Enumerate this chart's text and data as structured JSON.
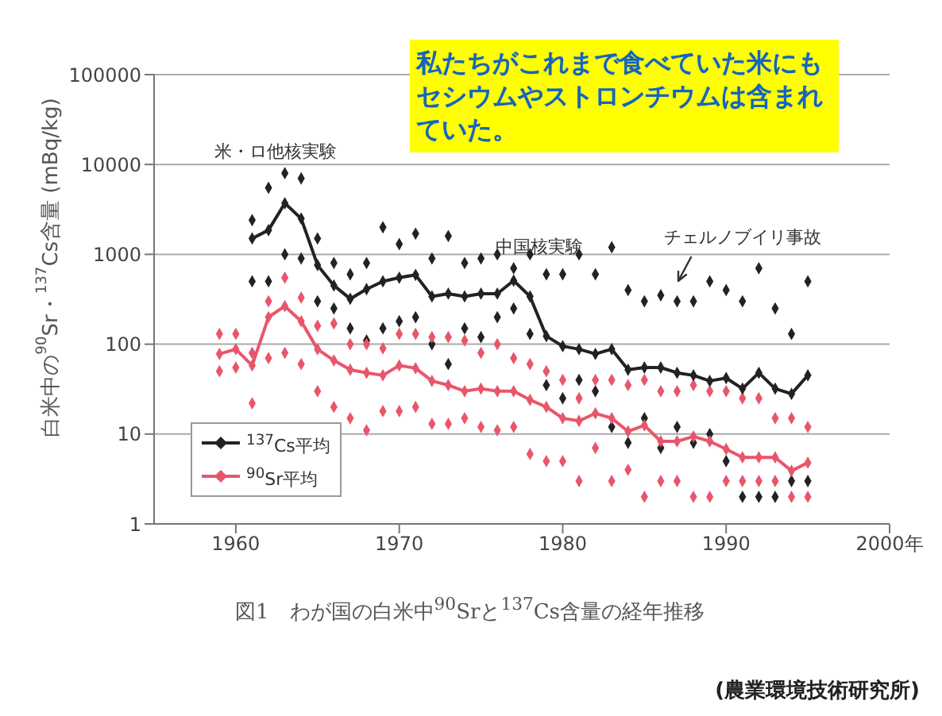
{
  "chart_data": {
    "type": "scatter",
    "ylabel": "白米中の$^{90}$Sr・$^{137}$Cs含量 (mBq/kg)",
    "log": "y",
    "grid": "y",
    "legend": "bottom left",
    "marker": "diamond",
    "line_style": "solid",
    "xlim": [
      1955,
      2000
    ],
    "xticks": [
      1960,
      1970,
      1980,
      1990,
      {
        "value": 2000,
        "label": "2000年"
      }
    ],
    "ylim": [
      1,
      100000
    ],
    "yticks": [
      1,
      10,
      100,
      1000,
      10000,
      100000
    ],
    "annotations": [
      "私たちがこれまで食べていた米にもセシウムやストロンチウムは含まれていた。",
      "図1　わが国の白米中$^{90}$Srと$^{137}$Cs含量の経年推移",
      "(農業環境技術研究所)",
      "米・ロ他核実験",
      "中国核実験",
      "チェルノブイリ事故"
    ],
    "series": [
      {
        "name": "$^{137}$Cs平均",
        "type": "line",
        "color": "#222222",
        "x": [
          1961,
          1962,
          1963,
          1964,
          1965,
          1966,
          1967,
          1968,
          1969,
          1970,
          1971,
          1972,
          1973,
          1974,
          1975,
          1976,
          1977,
          1978,
          1979,
          1980,
          1981,
          1982,
          1983,
          1984,
          1985,
          1986,
          1987,
          1988,
          1989,
          1990,
          1991,
          1992,
          1993,
          1994,
          1995
        ],
        "values": [
          1500,
          1860,
          3700,
          2500,
          760,
          450,
          320,
          410,
          500,
          550,
          590,
          340,
          365,
          340,
          365,
          365,
          510,
          340,
          123,
          95,
          88,
          78,
          88,
          52,
          55,
          55,
          48,
          45,
          39,
          42,
          32,
          48,
          32,
          28,
          45
        ]
      },
      {
        "name": "$^{90}$Sr平均",
        "type": "line",
        "color": "#e8566b",
        "x": [
          1959,
          1960,
          1961,
          1962,
          1963,
          1964,
          1965,
          1966,
          1967,
          1968,
          1969,
          1970,
          1971,
          1972,
          1973,
          1974,
          1975,
          1976,
          1977,
          1978,
          1979,
          1980,
          1981,
          1982,
          1983,
          1984,
          1985,
          1986,
          1987,
          1988,
          1989,
          1990,
          1991,
          1992,
          1993,
          1994,
          1995
        ],
        "values": [
          78,
          88,
          58,
          200,
          265,
          180,
          88,
          66,
          52,
          48,
          45,
          58,
          54,
          39,
          35,
          30,
          32,
          30,
          30,
          24,
          20,
          15,
          14,
          17,
          15,
          10.7,
          12.5,
          8.3,
          8.3,
          9.4,
          8.3,
          6.8,
          5.5,
          5.5,
          5.5,
          3.9,
          4.8
        ]
      },
      {
        "type": "scatter",
        "color": "#222222",
        "x": [
          1961,
          1961,
          1962,
          1962,
          1963,
          1963,
          1964,
          1964,
          1965,
          1965,
          1966,
          1966,
          1967,
          1967,
          1968,
          1968,
          1969,
          1969,
          1970,
          1970,
          1971,
          1971,
          1972,
          1972,
          1973,
          1973,
          1974,
          1974,
          1975,
          1975,
          1976,
          1976,
          1977,
          1977,
          1978,
          1978,
          1979,
          1979,
          1980,
          1980,
          1981,
          1981,
          1982,
          1982,
          1983,
          1983,
          1984,
          1984,
          1985,
          1985,
          1986,
          1986,
          1987,
          1987,
          1988,
          1988,
          1989,
          1989,
          1990,
          1990,
          1991,
          1991,
          1992,
          1992,
          1993,
          1993,
          1994,
          1994,
          1995,
          1995
        ],
        "values": [
          2400,
          500,
          5500,
          500,
          8000,
          1000,
          7000,
          900,
          1500,
          300,
          800,
          250,
          600,
          150,
          800,
          110,
          2000,
          150,
          1300,
          180,
          1700,
          200,
          900,
          100,
          1600,
          60,
          800,
          150,
          900,
          120,
          1000,
          200,
          700,
          250,
          1000,
          130,
          600,
          35,
          600,
          25,
          1000,
          40,
          600,
          30,
          1200,
          12,
          400,
          8,
          300,
          15,
          350,
          7,
          300,
          12,
          300,
          8,
          500,
          10,
          400,
          5,
          300,
          2,
          700,
          2,
          250,
          2,
          130,
          3,
          500,
          3
        ]
      },
      {
        "type": "scatter",
        "color": "#e8566b",
        "x": [
          1959,
          1959,
          1960,
          1960,
          1961,
          1961,
          1962,
          1962,
          1963,
          1963,
          1964,
          1964,
          1965,
          1965,
          1966,
          1966,
          1967,
          1967,
          1968,
          1968,
          1969,
          1969,
          1970,
          1970,
          1971,
          1971,
          1972,
          1972,
          1973,
          1973,
          1974,
          1974,
          1975,
          1975,
          1976,
          1976,
          1977,
          1977,
          1978,
          1978,
          1979,
          1979,
          1980,
          1980,
          1981,
          1981,
          1982,
          1982,
          1983,
          1983,
          1984,
          1984,
          1985,
          1985,
          1986,
          1986,
          1987,
          1987,
          1988,
          1988,
          1989,
          1989,
          1990,
          1990,
          1991,
          1991,
          1992,
          1992,
          1993,
          1993,
          1994,
          1994,
          1995,
          1995
        ],
        "values": [
          130,
          50,
          130,
          55,
          80,
          22,
          300,
          70,
          550,
          80,
          330,
          60,
          160,
          30,
          170,
          20,
          100,
          15,
          100,
          11,
          90,
          18,
          130,
          18,
          130,
          20,
          120,
          13,
          120,
          13,
          110,
          15,
          80,
          12,
          100,
          11,
          70,
          12,
          60,
          6,
          50,
          5,
          40,
          5,
          25,
          3,
          40,
          7,
          40,
          3,
          35,
          4,
          40,
          2,
          30,
          3,
          30,
          3,
          35,
          2,
          30,
          2,
          30,
          3,
          25,
          3,
          25,
          3,
          15,
          3,
          15,
          2,
          12,
          2
        ]
      }
    ]
  }
}
